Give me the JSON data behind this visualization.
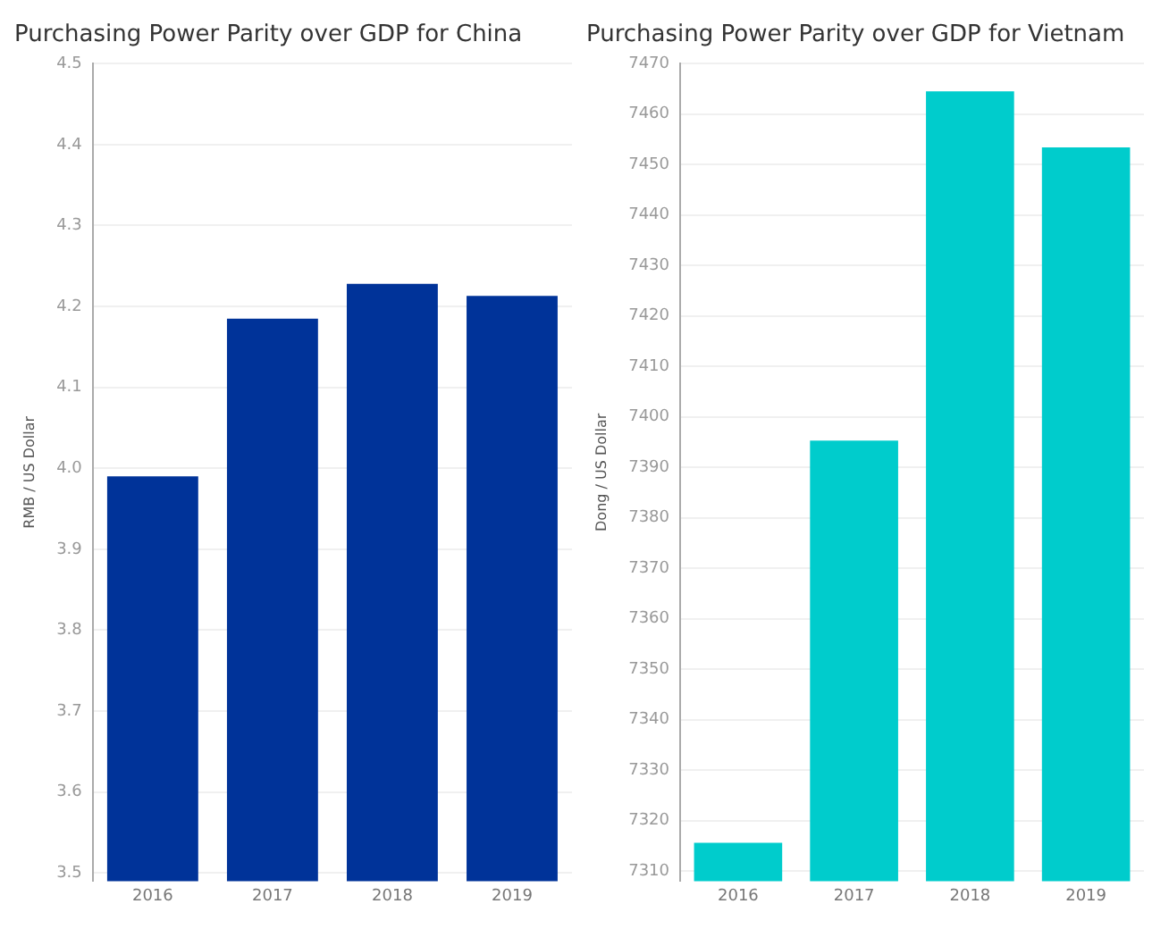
{
  "chart_data": [
    {
      "type": "bar",
      "title": "Purchasing Power Parity over GDP for China",
      "ylabel": "RMB / US Dollar",
      "categories": [
        "2016",
        "2017",
        "2018",
        "2019"
      ],
      "values": [
        3.99,
        4.185,
        4.228,
        4.213
      ],
      "color": "#003399",
      "ylim": [
        3.49,
        4.5
      ],
      "yticks": [
        {
          "value": 3.5,
          "label": "3.5"
        },
        {
          "value": 3.6,
          "label": "3.6"
        },
        {
          "value": 3.7,
          "label": "3.7"
        },
        {
          "value": 3.8,
          "label": "3.8"
        },
        {
          "value": 3.9,
          "label": "3.9"
        },
        {
          "value": 4.0,
          "label": "4.0"
        },
        {
          "value": 4.1,
          "label": "4.1"
        },
        {
          "value": 4.2,
          "label": "4.2"
        },
        {
          "value": 4.3,
          "label": "4.3"
        },
        {
          "value": 4.4,
          "label": "4.4"
        },
        {
          "value": 4.5,
          "label": "4.5"
        }
      ],
      "grid": "y"
    },
    {
      "type": "bar",
      "title": "Purchasing Power Parity over GDP for Vietnam",
      "ylabel": "Dong / US Dollar",
      "categories": [
        "2016",
        "2017",
        "2018",
        "2019"
      ],
      "values": [
        7315.6,
        7395.3,
        7464.5,
        7453.4
      ],
      "color": "#00cccc",
      "ylim": [
        7308,
        7470
      ],
      "yticks": [
        7310,
        7320,
        7330,
        7340,
        7350,
        7360,
        7370,
        7380,
        7390,
        7400,
        7410,
        7420,
        7430,
        7440,
        7450,
        7460,
        7470
      ],
      "grid": "y"
    }
  ]
}
